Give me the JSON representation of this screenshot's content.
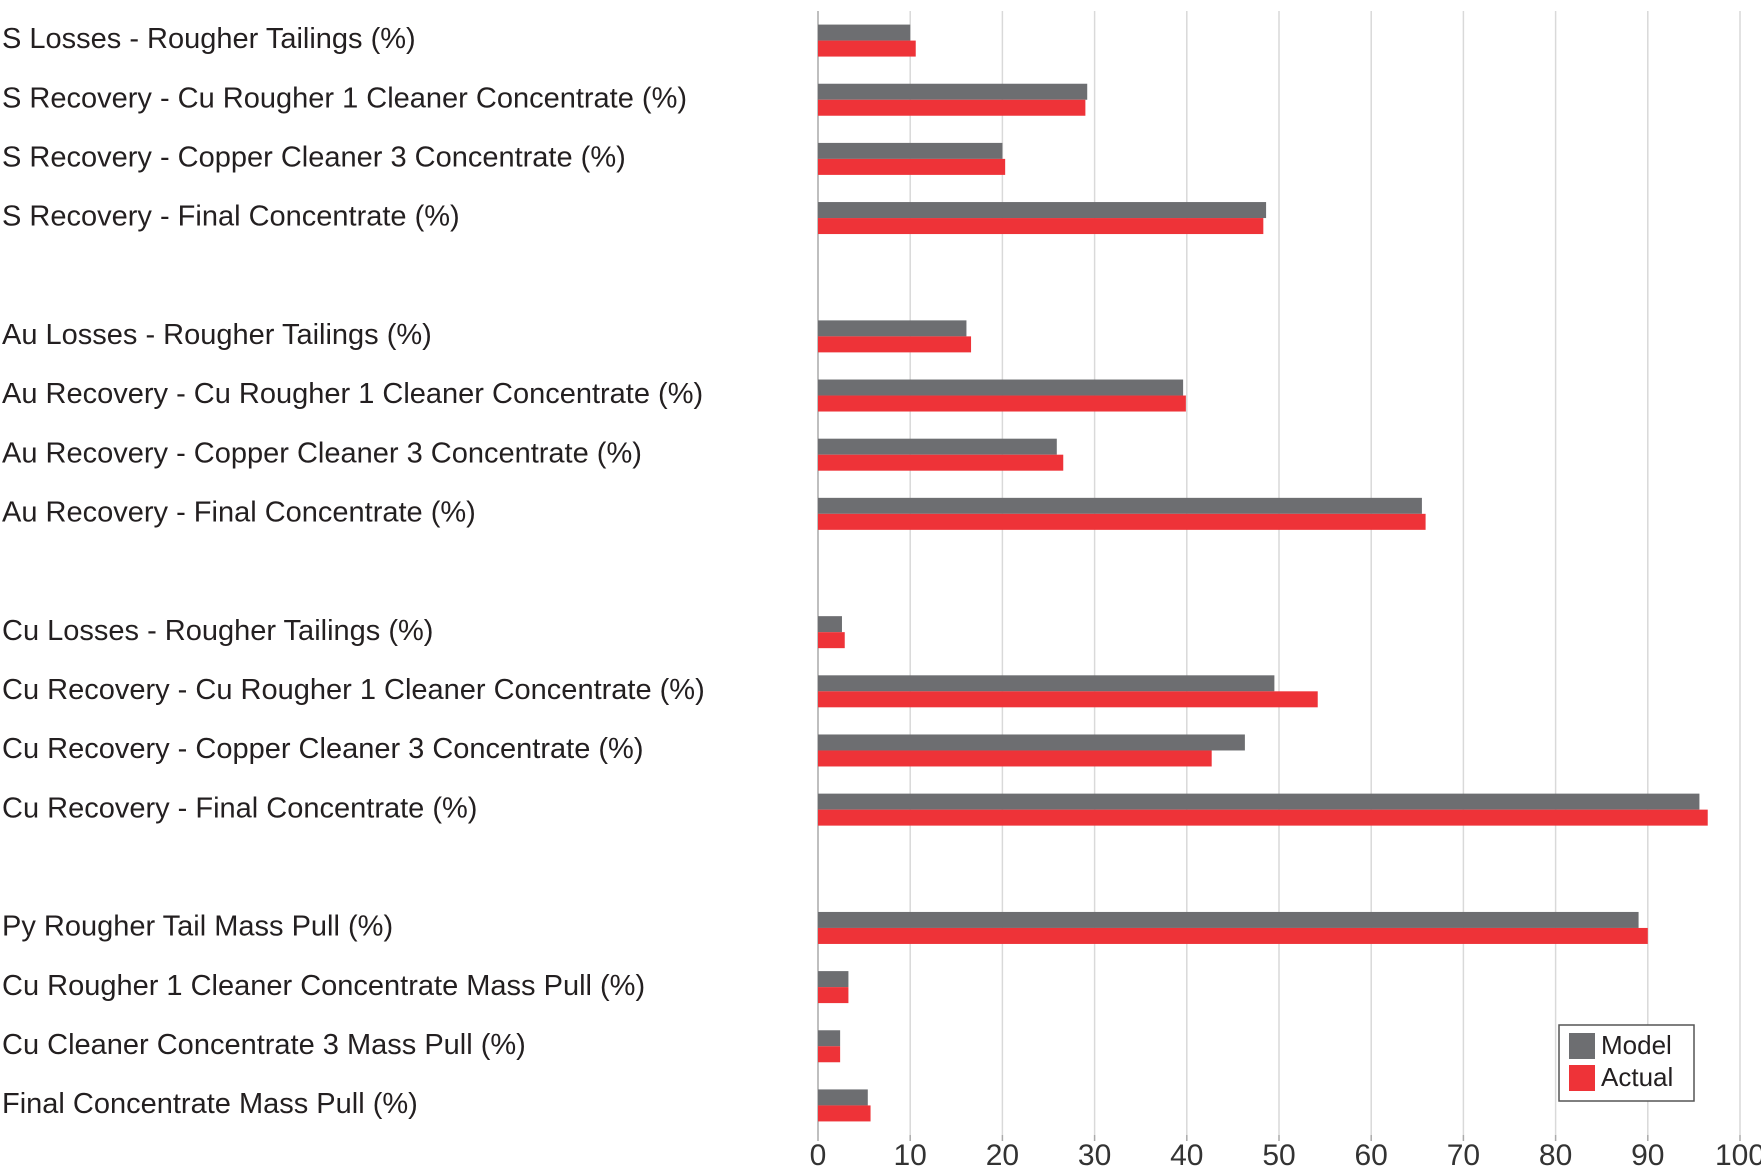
{
  "chart_data": {
    "type": "hbar",
    "categories": [
      "S Losses - Rougher Tailings (%)",
      "S Recovery - Cu Rougher 1 Cleaner Concentrate (%)",
      "S Recovery - Copper Cleaner 3 Concentrate (%)",
      "S Recovery - Final Concentrate (%)",
      null,
      "Au Losses - Rougher Tailings (%)",
      "Au Recovery - Cu Rougher 1 Cleaner Concentrate (%)",
      "Au Recovery - Copper Cleaner 3 Concentrate (%)",
      "Au Recovery - Final Concentrate (%)",
      null,
      "Cu Losses - Rougher Tailings (%)",
      "Cu Recovery - Cu Rougher 1 Cleaner Concentrate (%)",
      "Cu Recovery - Copper Cleaner 3 Concentrate (%)",
      "Cu Recovery - Final Concentrate (%)",
      null,
      "Py Rougher Tail Mass Pull (%)",
      "Cu Rougher 1 Cleaner Concentrate Mass Pull (%)",
      "Cu Cleaner Concentrate 3 Mass Pull (%)",
      "Final Concentrate Mass Pull (%)"
    ],
    "series": [
      {
        "name": "Model",
        "color": "#6d6e71",
        "values": [
          10.0,
          29.2,
          20.0,
          48.6,
          null,
          16.1,
          39.6,
          25.9,
          65.5,
          null,
          2.6,
          49.5,
          46.3,
          95.6,
          null,
          89.0,
          3.3,
          2.4,
          5.4
        ]
      },
      {
        "name": "Actual",
        "color": "#ee3338",
        "values": [
          10.6,
          29.0,
          20.3,
          48.3,
          null,
          16.6,
          39.9,
          26.6,
          65.9,
          null,
          2.9,
          54.2,
          42.7,
          96.5,
          null,
          90.0,
          3.3,
          2.4,
          5.7
        ]
      }
    ],
    "xlim": [
      0,
      100
    ],
    "xticks": [
      0,
      10,
      20,
      30,
      40,
      50,
      60,
      70,
      80,
      90,
      100
    ],
    "grid": true,
    "legend": "lower right"
  }
}
